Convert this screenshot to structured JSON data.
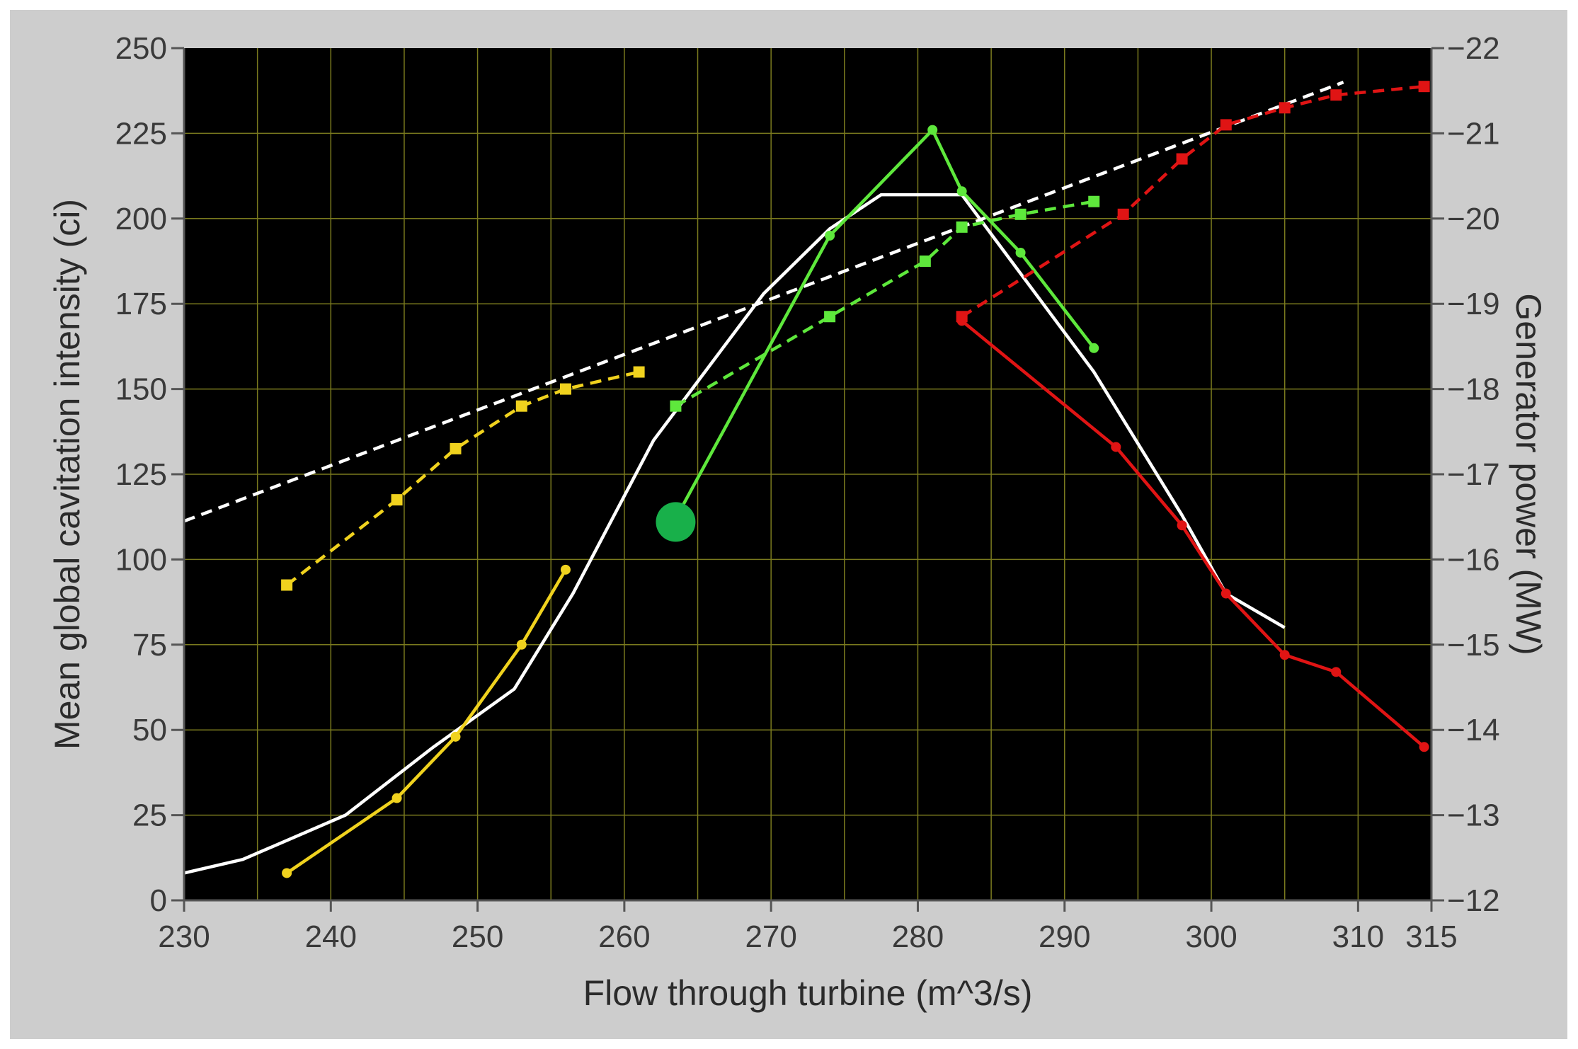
{
  "colors": {
    "frame_bg": "#cdcdcd",
    "plot_bg": "#000000",
    "grid": "#7a7a1e",
    "axis": "#555555",
    "text": "#3a3a3a",
    "white": "#ffffff",
    "yellow": "#f0d21e",
    "green": "#5ee83c",
    "red": "#e01414",
    "marker_green": "#18b04a"
  },
  "chart_data": {
    "type": "line",
    "xlabel": "Flow through turbine (m^3/s)",
    "ylabel": "Mean global cavitation intensity (ci)",
    "y2label": "Generator power (MW)",
    "xlim": [
      230,
      315
    ],
    "ylim": [
      0,
      250
    ],
    "y2lim": [
      12,
      22
    ],
    "x_ticks": [
      230,
      240,
      250,
      260,
      270,
      280,
      290,
      300,
      310,
      315
    ],
    "x_tick_labels": [
      "230",
      "240",
      "250",
      "260",
      "270",
      "280",
      "290",
      "300",
      "310",
      "315"
    ],
    "y_ticks": [
      0,
      25,
      50,
      75,
      100,
      125,
      150,
      175,
      200,
      225,
      250
    ],
    "y_tick_labels": [
      "0",
      "25",
      "50",
      "75",
      "100",
      "125",
      "150",
      "175",
      "200",
      "225",
      "250"
    ],
    "y2_ticks": [
      12,
      13,
      14,
      15,
      16,
      17,
      18,
      19,
      20,
      21,
      22
    ],
    "y2_tick_labels": [
      "12",
      "13",
      "14",
      "15",
      "16",
      "17",
      "18",
      "19",
      "20",
      "21",
      "22"
    ],
    "grid": true,
    "series": [
      {
        "color": "#ffffff",
        "style": "solid",
        "axis": "left",
        "marker": "none",
        "x": [
          230,
          234,
          241,
          247,
          252.5,
          256.5,
          262,
          269.5,
          274,
          277.5,
          283,
          292,
          298,
          301,
          305
        ],
        "y": [
          8,
          12,
          25,
          45,
          62,
          90,
          135,
          178,
          197,
          207,
          207,
          155,
          113,
          90,
          80
        ]
      },
      {
        "color": "#ffffff",
        "style": "dashed",
        "axis": "right",
        "marker": "none",
        "x": [
          230,
          309
        ],
        "y": [
          16.45,
          21.6
        ]
      },
      {
        "color": "#f0d21e",
        "style": "solid",
        "axis": "left",
        "marker": "dot",
        "x": [
          237,
          244.5,
          248.5,
          253,
          256
        ],
        "y": [
          8,
          30,
          48,
          75,
          97
        ]
      },
      {
        "color": "#f0d21e",
        "style": "dashed",
        "axis": "right",
        "marker": "square",
        "x": [
          237,
          244.5,
          248.5,
          253,
          256,
          261
        ],
        "y": [
          15.7,
          16.7,
          17.3,
          17.8,
          18.0,
          18.2
        ]
      },
      {
        "color": "#5ee83c",
        "style": "solid",
        "axis": "left",
        "marker": "dot",
        "x": [
          263.5,
          274,
          281,
          283,
          287,
          292
        ],
        "y": [
          112,
          195,
          226,
          208,
          190,
          162
        ]
      },
      {
        "color": "#5ee83c",
        "style": "dashed",
        "axis": "right",
        "marker": "square",
        "x": [
          263.5,
          274,
          280.5,
          283,
          287,
          292
        ],
        "y": [
          17.8,
          18.85,
          19.5,
          19.9,
          20.05,
          20.2
        ]
      },
      {
        "color": "#e01414",
        "style": "solid",
        "axis": "left",
        "marker": "dot",
        "x": [
          283,
          293.5,
          298,
          301,
          305,
          308.5,
          314.5
        ],
        "y": [
          170,
          133,
          110,
          90,
          72,
          67,
          45
        ]
      },
      {
        "color": "#e01414",
        "style": "dashed",
        "axis": "right",
        "marker": "square",
        "x": [
          283,
          294,
          298,
          301,
          305,
          308.5,
          314.5
        ],
        "y": [
          18.85,
          20.05,
          20.7,
          21.1,
          21.3,
          21.45,
          21.55
        ]
      }
    ],
    "highlight_point": {
      "x": 263.5,
      "y": 111,
      "color": "#18b04a",
      "axis": "left"
    }
  }
}
